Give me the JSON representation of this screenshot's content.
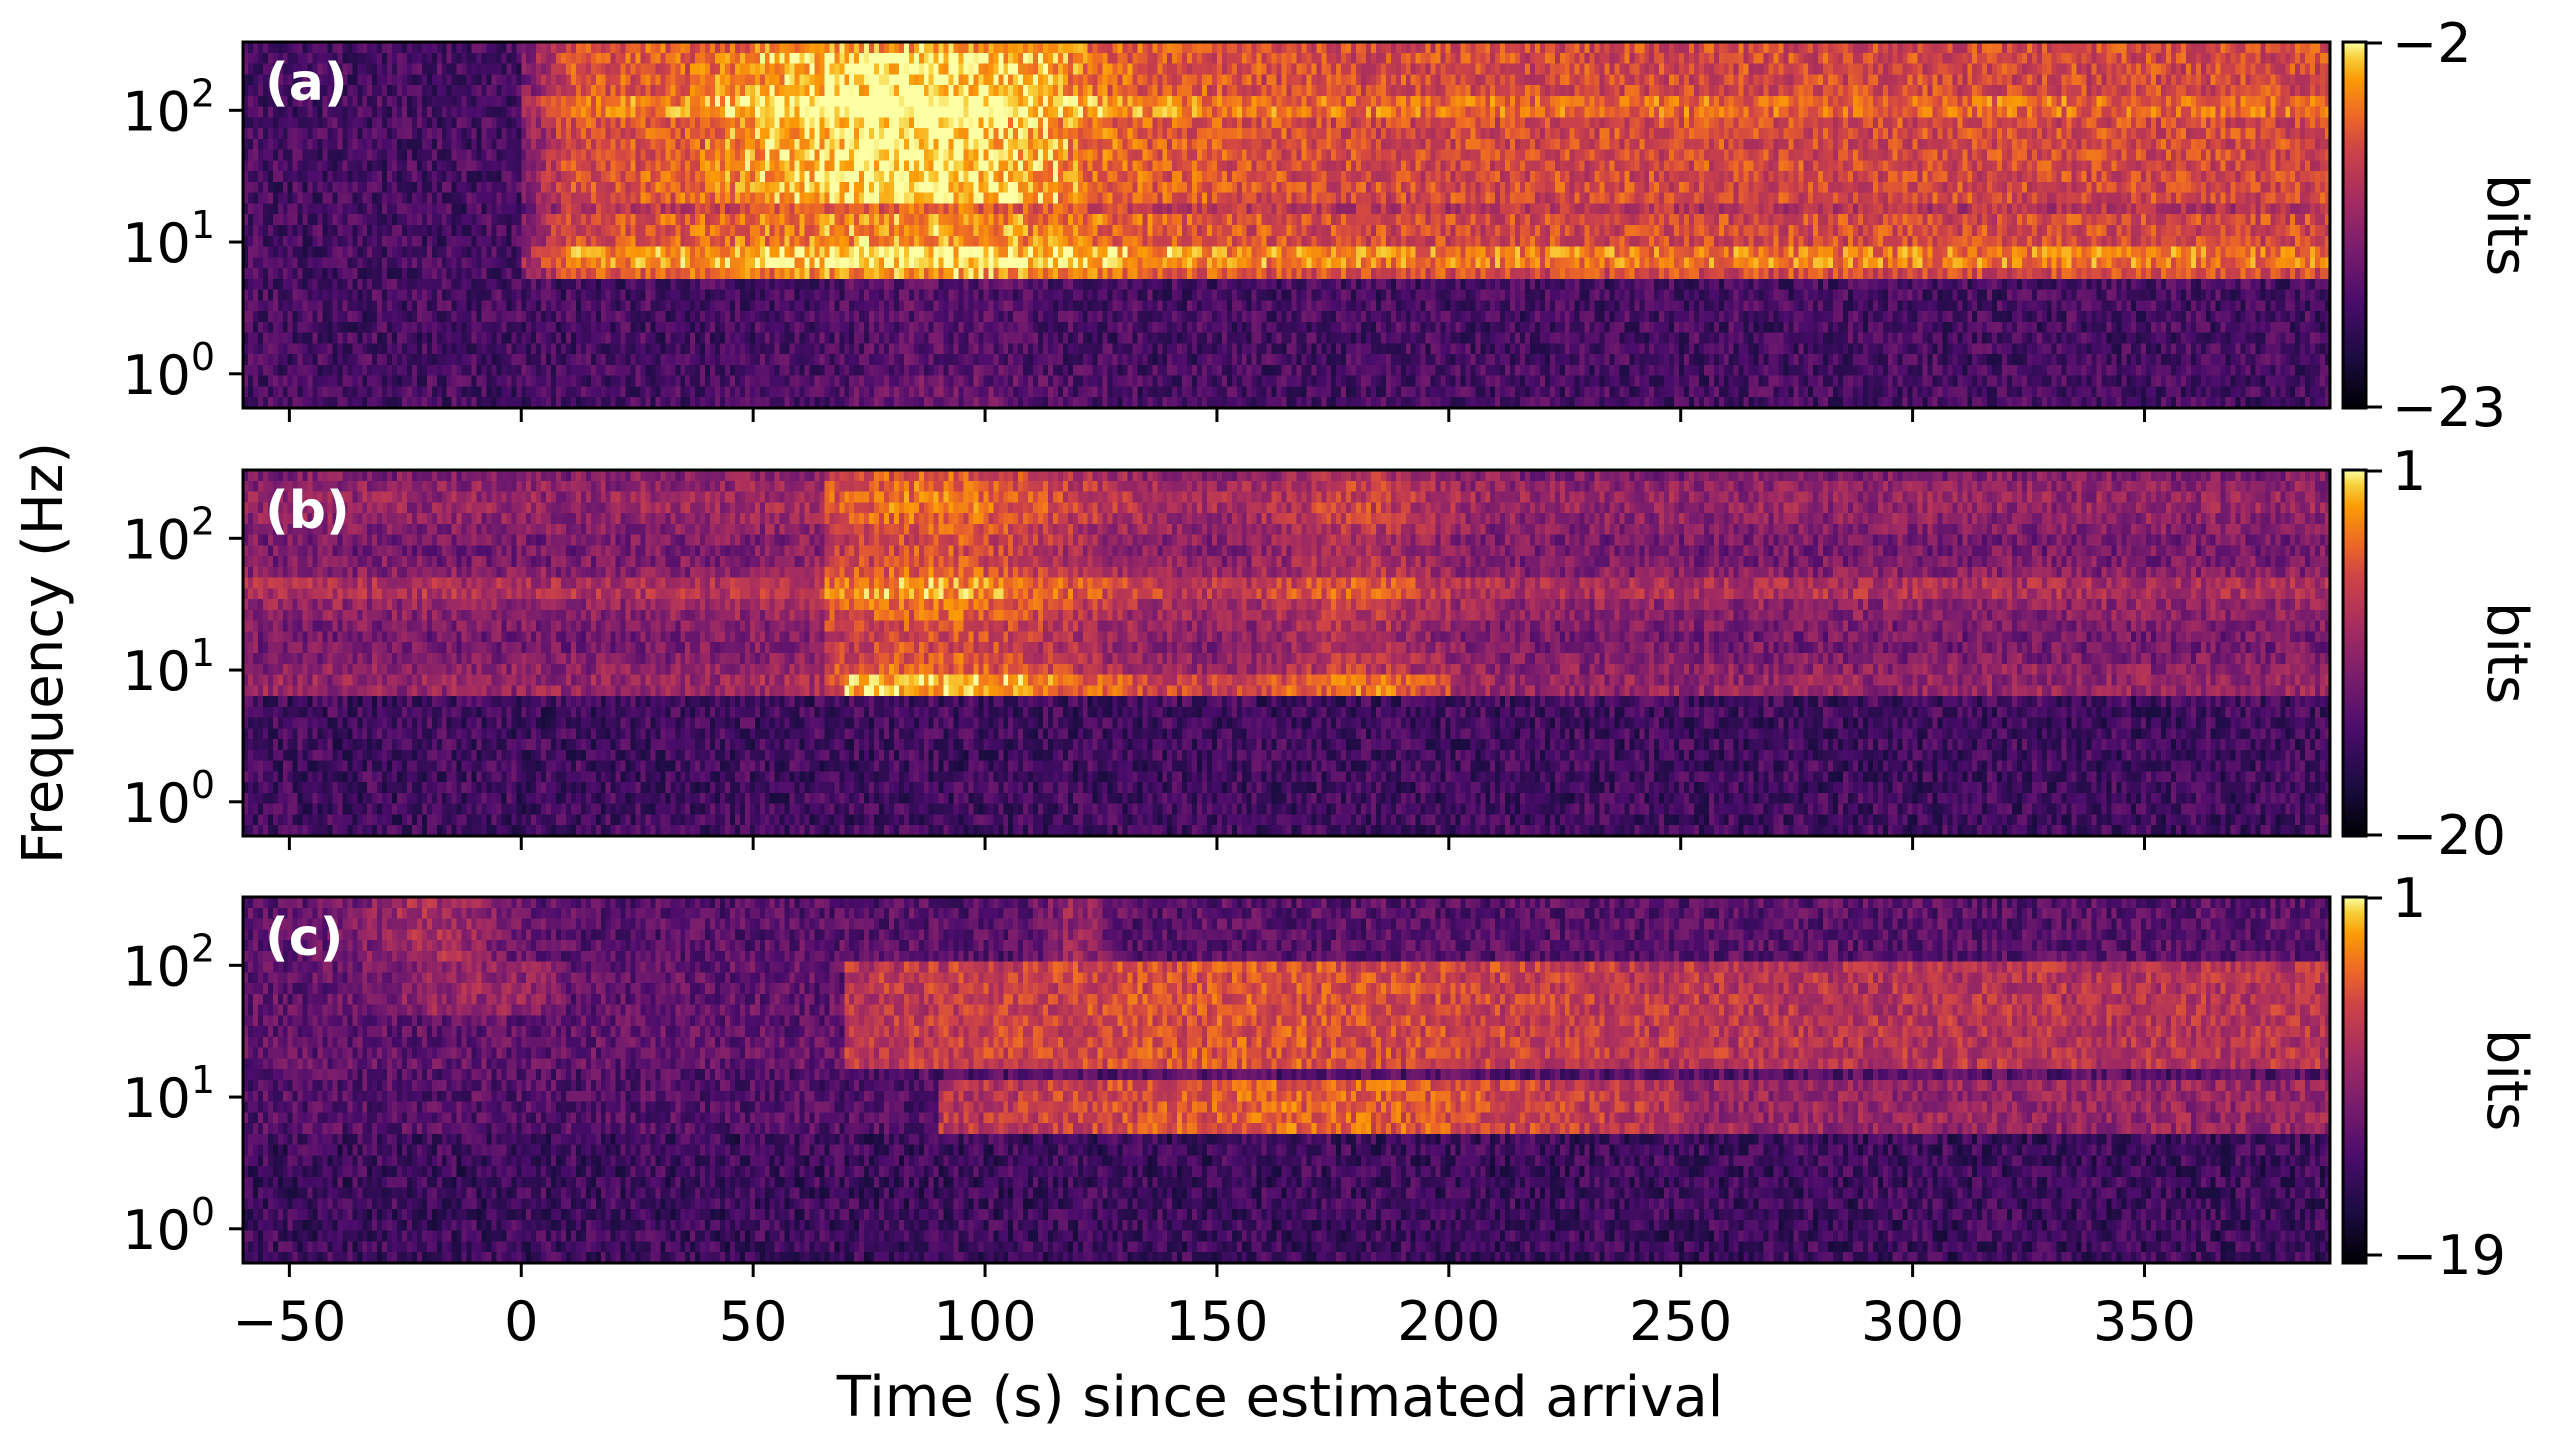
{
  "chart_data": {
    "type": "heatmap",
    "xlabel": "Time (s) since estimated arrival",
    "ylabel": "Frequency (Hz)",
    "xlim": [
      -60,
      390
    ],
    "xticks": [
      -50,
      0,
      50,
      100,
      150,
      200,
      250,
      300,
      350
    ],
    "xtick_labels": [
      "−50",
      "0",
      "50",
      "100",
      "150",
      "200",
      "250",
      "300",
      "350"
    ],
    "y_scale": "log",
    "ylim": [
      0.55,
      330
    ],
    "yticks": [
      {
        "value": 1,
        "base": "10",
        "exp": "0"
      },
      {
        "value": 10,
        "base": "10",
        "exp": "1"
      },
      {
        "value": 100,
        "base": "10",
        "exp": "2"
      }
    ],
    "colormap": "inferno",
    "colorbar_label": "bits",
    "panels": [
      {
        "label": "(a)",
        "colorbar_range": [
          -23,
          -2
        ],
        "colorbar_tick_labels": [
          "−23",
          "−2"
        ],
        "energy_onset_s": 0,
        "peak_time_s": 85,
        "low_band_cutoff_hz": 5
      },
      {
        "label": "(b)",
        "colorbar_range": [
          -20,
          1
        ],
        "colorbar_tick_labels": [
          "−20",
          "1"
        ],
        "energy_onset_s": 70,
        "peak_time_s": 85,
        "low_band_cutoff_hz": 6
      },
      {
        "label": "(c)",
        "colorbar_range": [
          -19,
          1
        ],
        "colorbar_tick_labels": [
          "−19",
          "1"
        ],
        "energy_onset_s": 70,
        "peak_time_s": 165,
        "low_band_cutoff_hz": 5
      }
    ]
  }
}
